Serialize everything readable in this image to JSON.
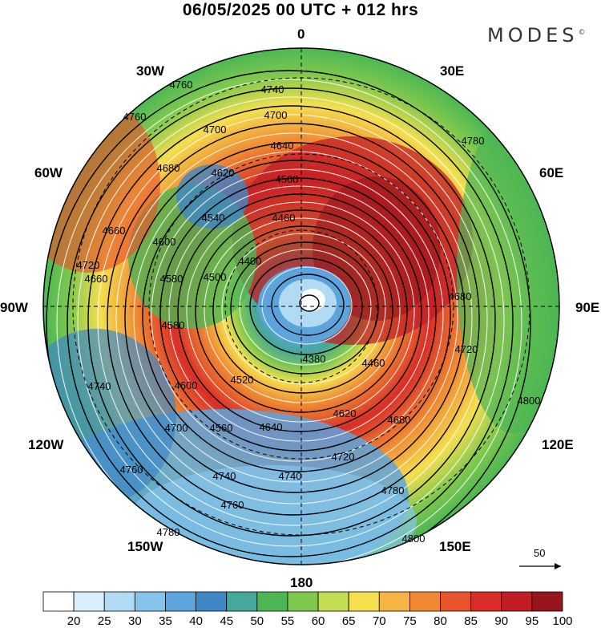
{
  "title": "06/05/2025  00 UTC  + 012 hrs",
  "brand": "MODES",
  "brand_mark": "©",
  "meridian_labels": {
    "n0": "0",
    "e30": "30E",
    "e60": "60E",
    "e90": "90E",
    "e120": "120E",
    "e150": "150E",
    "s180": "180",
    "w150": "150W",
    "w120": "120W",
    "w90": "90W",
    "w60": "60W",
    "w30": "30W"
  },
  "contour_labels": [
    "4380",
    "4400",
    "4460",
    "4500",
    "4520",
    "4540",
    "4560",
    "4580",
    "4600",
    "4620",
    "4640",
    "4660",
    "4680",
    "4700",
    "4720",
    "4740",
    "4760",
    "4780",
    "4800"
  ],
  "wind_scale": {
    "label": "50",
    "icon": "arrow-right-icon"
  },
  "colorbar": {
    "ticks": [
      "20",
      "25",
      "30",
      "35",
      "40",
      "45",
      "50",
      "55",
      "60",
      "65",
      "70",
      "75",
      "80",
      "85",
      "90",
      "95",
      "100"
    ],
    "colors": [
      "#ffffff",
      "#d8eefc",
      "#b1dbf4",
      "#86c4ec",
      "#5ea4dc",
      "#3f87c6",
      "#45a89a",
      "#4cb754",
      "#7fc84e",
      "#c2dc54",
      "#f5df4f",
      "#f5b443",
      "#ef8a33",
      "#e8542b",
      "#d92e28",
      "#c11d25",
      "#97161b"
    ]
  }
}
